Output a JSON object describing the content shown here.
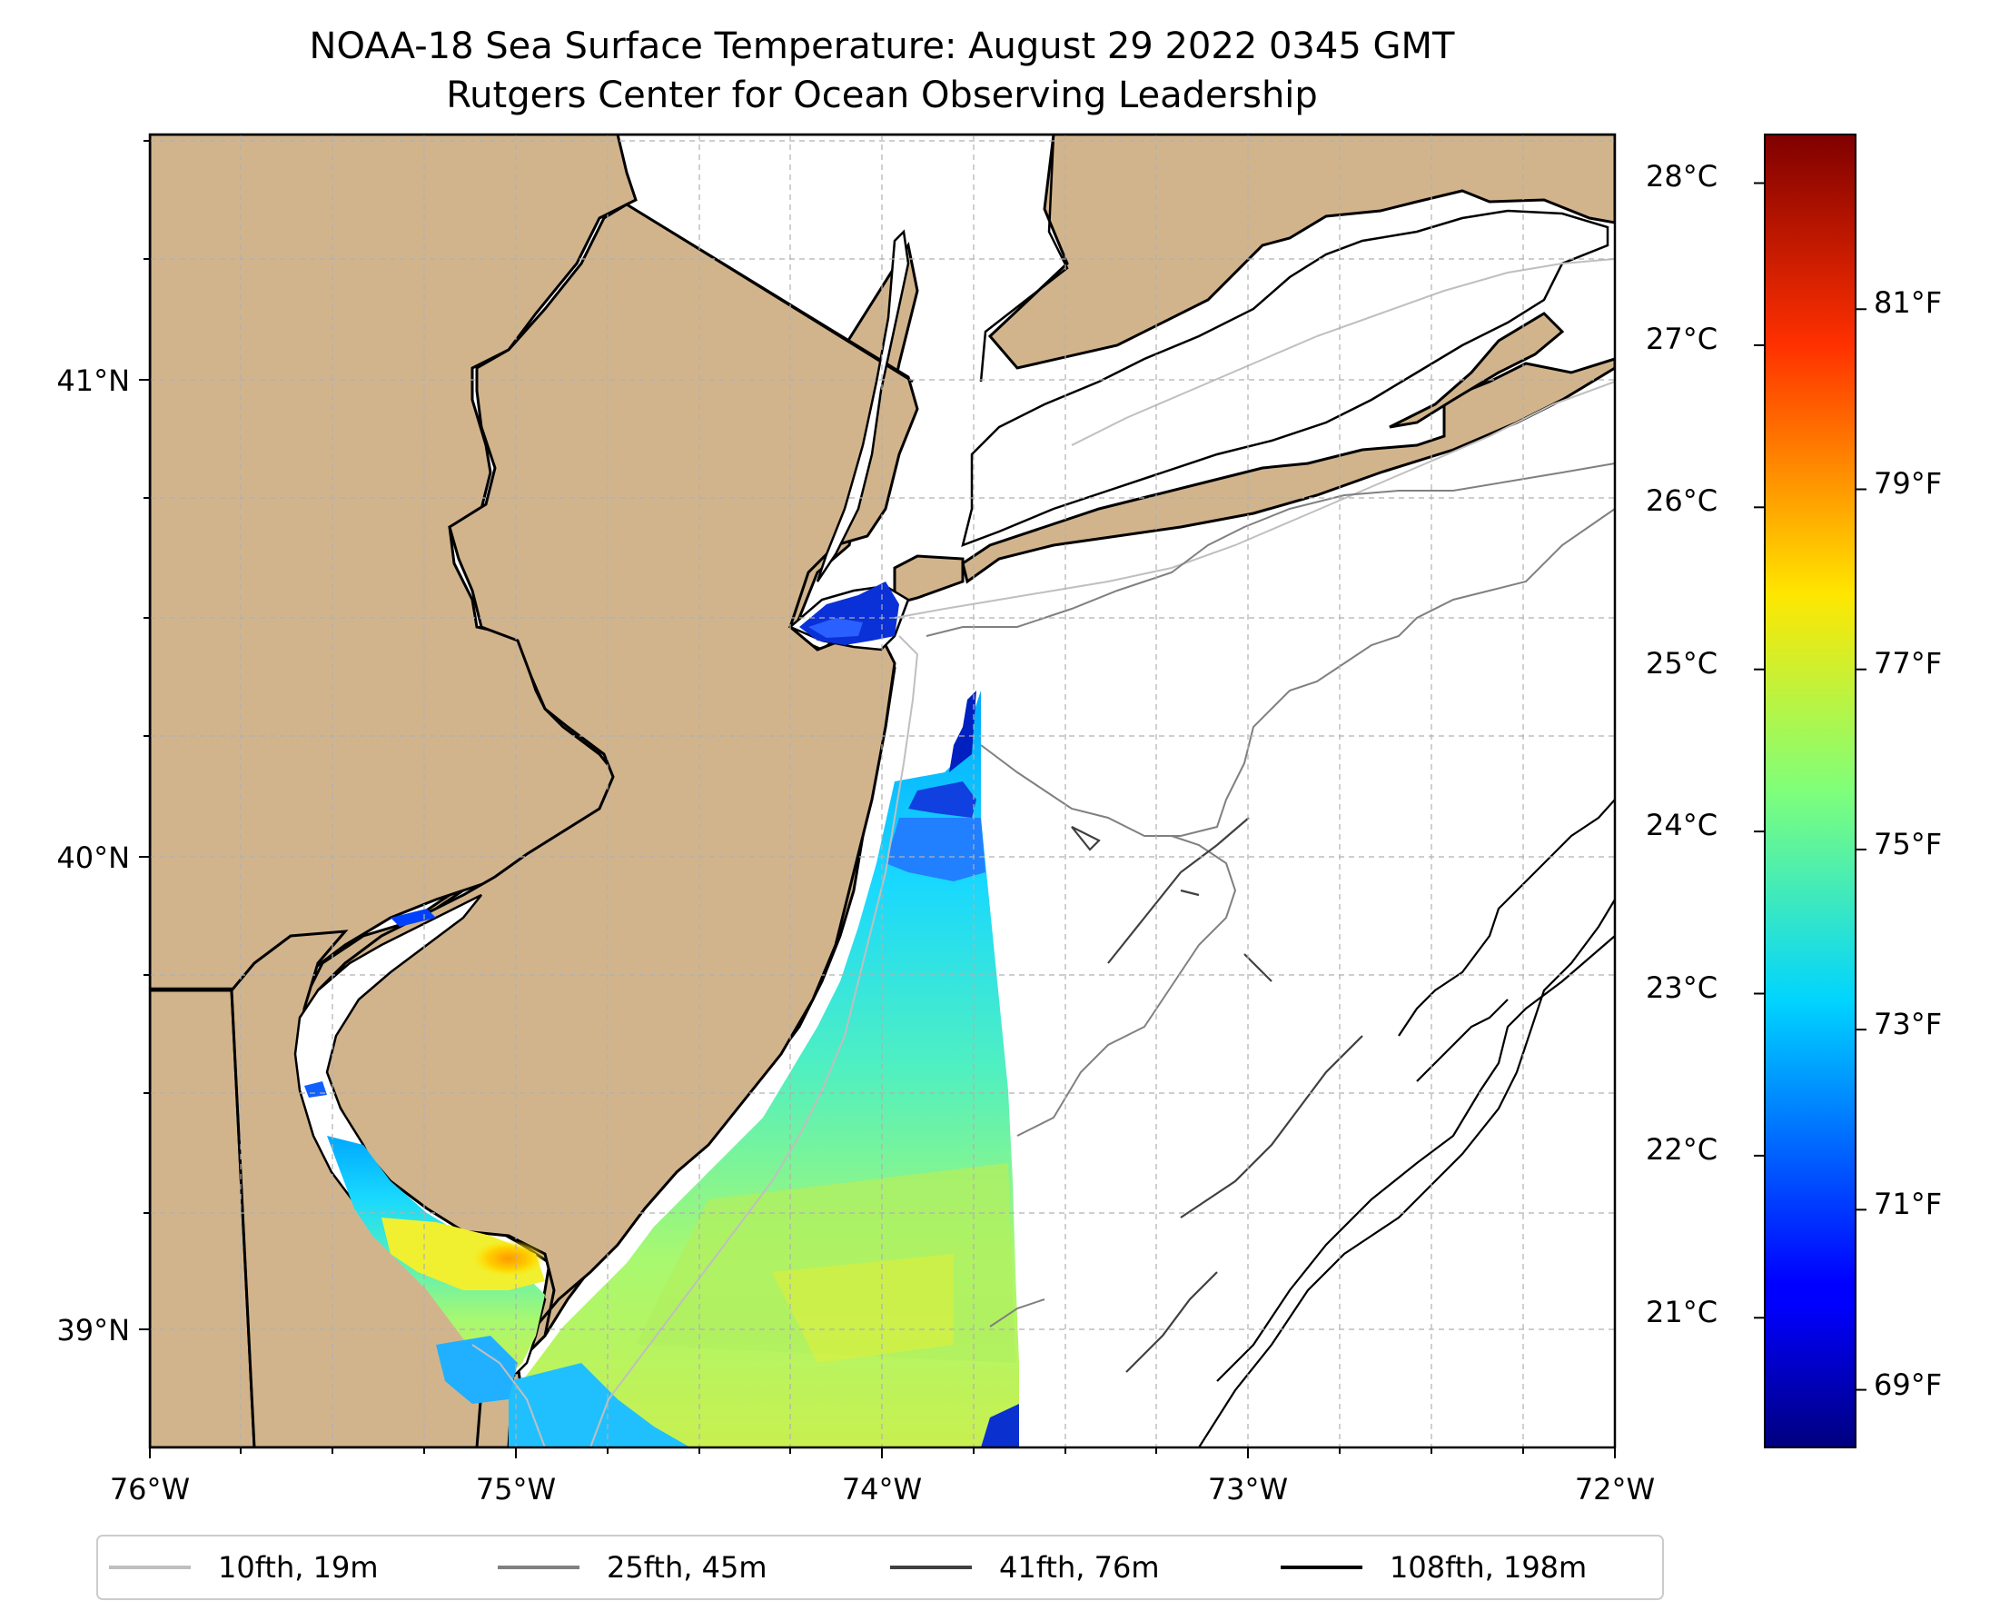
{
  "title": {
    "line1": "NOAA-18 Sea Surface Temperature: August 29 2022 0345 GMT",
    "line2": "Rutgers Center for Ocean Observing Leadership"
  },
  "map": {
    "land_color": "#d2b48c",
    "ocean_color": "#ffffff",
    "lon_range": [
      -76,
      -72
    ],
    "lat_range": [
      38.75,
      41.55
    ],
    "lon_labels": [
      "76°W",
      "75°W",
      "74°W",
      "73°W",
      "72°W"
    ],
    "lat_labels": [
      "41°N",
      "40°N",
      "39°N"
    ]
  },
  "colorbar": {
    "celsius_labels": [
      "28°C",
      "27°C",
      "26°C",
      "25°C",
      "24°C",
      "23°C",
      "22°C",
      "21°C"
    ],
    "fahrenheit_labels": [
      "81°F",
      "79°F",
      "77°F",
      "75°F",
      "73°F",
      "71°F",
      "69°F"
    ],
    "celsius_ticks": [
      28,
      27,
      26,
      25,
      24,
      23,
      22,
      21
    ],
    "fahrenheit_ticks": [
      81,
      79,
      77,
      75,
      73,
      71,
      69
    ],
    "range_c": [
      20.2,
      28.3
    ]
  },
  "legend": {
    "items": [
      {
        "label": "10fth, 19m",
        "color": "#bfbfbf"
      },
      {
        "label": "25fth, 45m",
        "color": "#808080"
      },
      {
        "label": "41fth, 76m",
        "color": "#404040"
      },
      {
        "label": "108fth, 198m",
        "color": "#000000"
      }
    ]
  }
}
